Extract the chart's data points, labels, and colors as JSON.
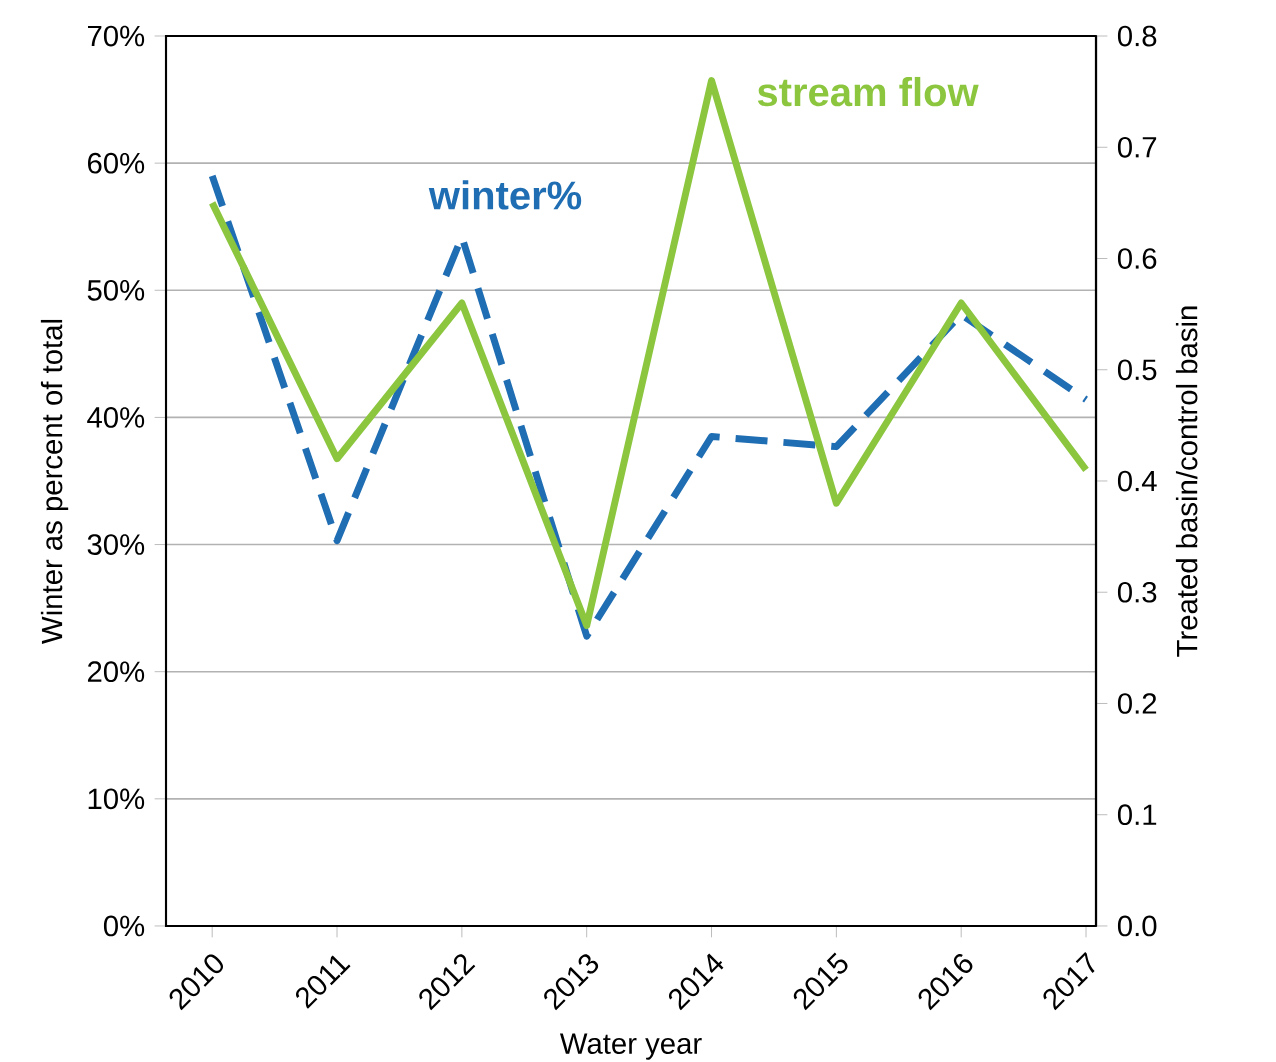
{
  "chart_data": {
    "type": "line",
    "xlabel": "Water year",
    "ylabel": "Winter as percent of total",
    "y2label": "Treated basin/control basin",
    "categories": [
      "2010",
      "2011",
      "2012",
      "2013",
      "2014",
      "2015",
      "2016",
      "2017"
    ],
    "series": [
      {
        "name": "winter%",
        "color": "#1f6db3",
        "line_style": "dashed",
        "values": [
          59,
          30.3,
          54.2,
          22.8,
          38.5,
          37.7,
          48.1,
          41.4
        ]
      },
      {
        "name": "stream flow",
        "color": "#8cc63f",
        "line_style": "solid",
        "axis": "y2",
        "values": [
          0.65,
          0.42,
          0.56,
          0.27,
          0.76,
          0.38,
          0.56,
          0.41
        ]
      }
    ],
    "ylim": [
      0,
      70
    ],
    "yticks": [
      {
        "value": 0,
        "label": "0%"
      },
      {
        "value": 10,
        "label": "10%"
      },
      {
        "value": 20,
        "label": "20%"
      },
      {
        "value": 30,
        "label": "30%"
      },
      {
        "value": 40,
        "label": "40%"
      },
      {
        "value": 50,
        "label": "50%"
      },
      {
        "value": 60,
        "label": "60%"
      },
      {
        "value": 70,
        "label": "70%"
      }
    ],
    "y2lim": [
      0,
      0.8
    ],
    "y2ticks": [
      {
        "value": 0,
        "label": "0.0"
      },
      {
        "value": 0.1,
        "label": "0.1"
      },
      {
        "value": 0.2,
        "label": "0.2"
      },
      {
        "value": 0.3,
        "label": "0.3"
      },
      {
        "value": 0.4,
        "label": "0.4"
      },
      {
        "value": 0.5,
        "label": "0.5"
      },
      {
        "value": 0.6,
        "label": "0.6"
      },
      {
        "value": 0.7,
        "label": "0.7"
      },
      {
        "value": 0.8,
        "label": "0.8"
      }
    ],
    "grid": "y",
    "legend": false,
    "marker": "none"
  }
}
